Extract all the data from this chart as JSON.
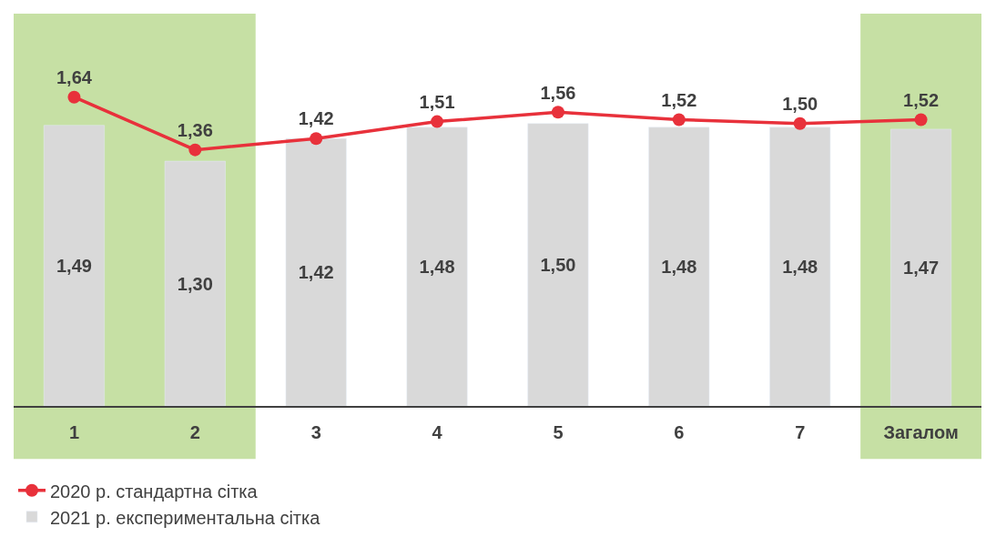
{
  "chart_data": {
    "type": "bar",
    "categories": [
      "1",
      "2",
      "3",
      "4",
      "5",
      "6",
      "7",
      "Загалом"
    ],
    "series": [
      {
        "name": "2020 р. стандартна сітка",
        "type": "line",
        "color": "#e8313b",
        "values": [
          1.64,
          1.36,
          1.42,
          1.51,
          1.56,
          1.52,
          1.5,
          1.52
        ],
        "value_labels": [
          "1,64",
          "1,36",
          "1,42",
          "1,51",
          "1,56",
          "1,52",
          "1,50",
          "1,52"
        ]
      },
      {
        "name": "2021 р. експериментальна сітка",
        "color": "#d9d9d9",
        "values": [
          1.49,
          1.3,
          1.42,
          1.48,
          1.5,
          1.48,
          1.48,
          1.47
        ],
        "value_labels": [
          "1,49",
          "1,30",
          "1,42",
          "1,48",
          "1,50",
          "1,48",
          "1,48",
          "1,47"
        ]
      }
    ],
    "tick_labels": "x",
    "marker": "circle",
    "legend": "bottom left",
    "grid": false,
    "bands": [
      {
        "axis": "x",
        "from": "1",
        "to": "2",
        "color": "#c6e0a4"
      },
      {
        "axis": "x",
        "from": "Загалом",
        "to": "Загалом",
        "color": "#c6e0a4"
      }
    ]
  }
}
